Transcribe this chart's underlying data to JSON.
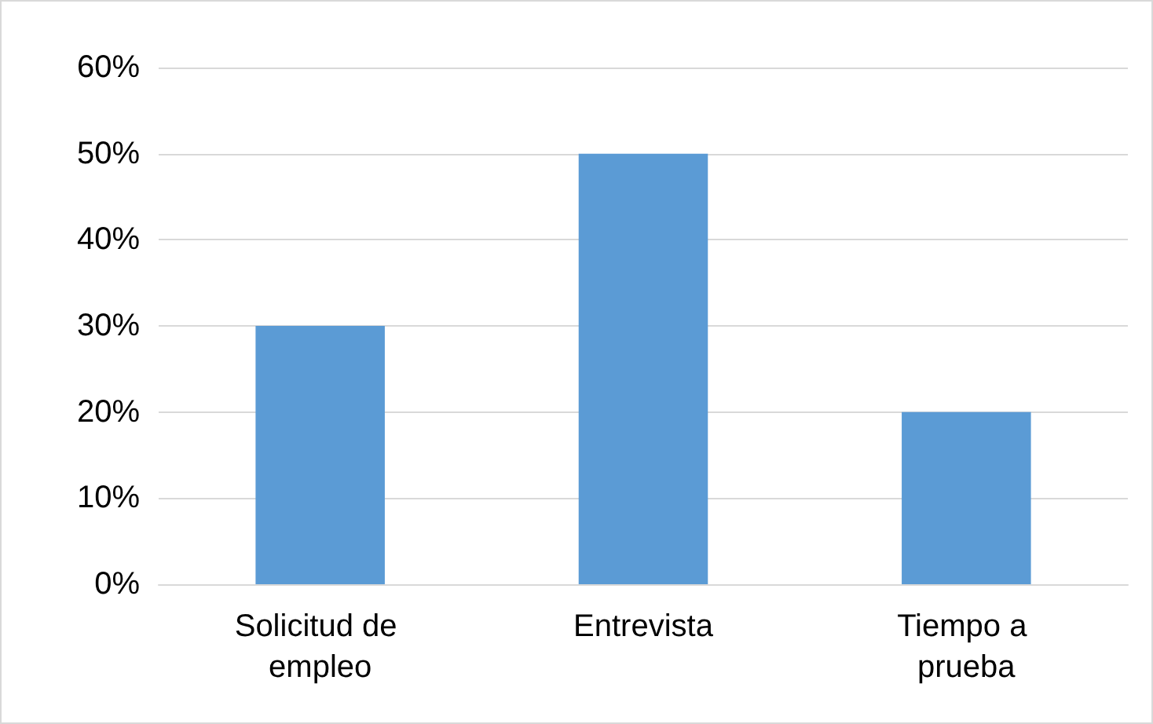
{
  "chart_data": {
    "type": "bar",
    "categories": [
      "Solicitud de empleo",
      "Entrevista",
      "Tiempo a prueba"
    ],
    "values": [
      30,
      50,
      20
    ],
    "color": "#5b9bd5",
    "ylim": [
      0,
      60
    ],
    "yticks": [
      {
        "value": 0,
        "label": "0%"
      },
      {
        "value": 10,
        "label": "10%"
      },
      {
        "value": 20,
        "label": "20%"
      },
      {
        "value": 30,
        "label": "30%"
      },
      {
        "value": 40,
        "label": "40%"
      },
      {
        "value": 50,
        "label": "50%"
      },
      {
        "value": 60,
        "label": "60%"
      }
    ],
    "grid": "y"
  }
}
